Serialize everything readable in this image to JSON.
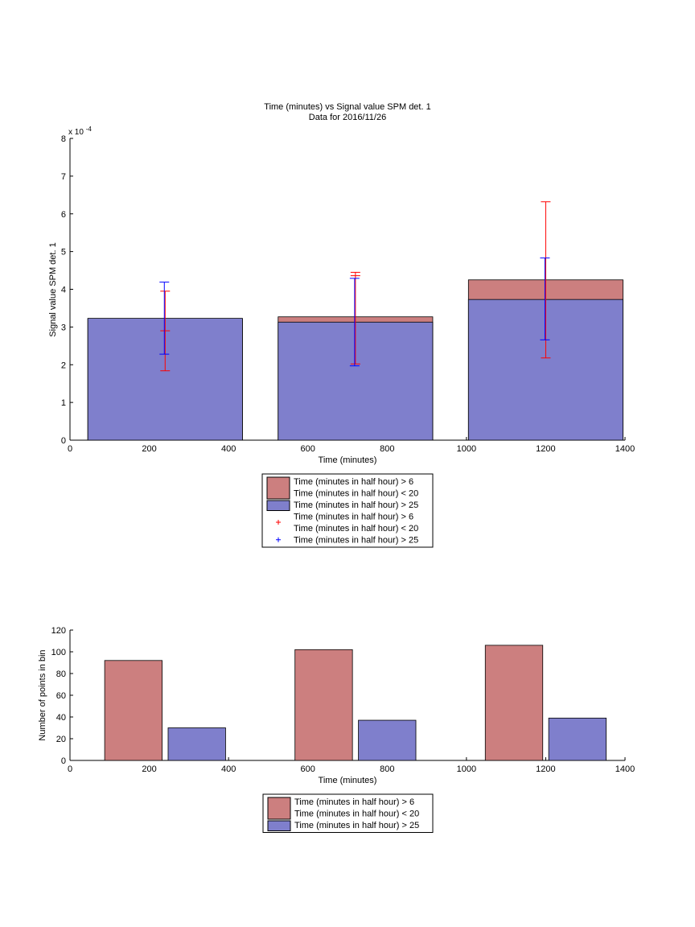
{
  "chart_data": [
    {
      "type": "bar",
      "title": "Time (minutes) vs Signal value SPM det. 1",
      "subtitle": "Data for 2016/11/26",
      "xlabel": "Time (minutes)",
      "ylabel": "Signal value SPM det. 1",
      "exponent_label": "x 10",
      "exponent_power": "-4",
      "xlim": [
        0,
        1400
      ],
      "ylim": [
        0,
        8
      ],
      "xticks": [
        "0",
        "200",
        "400",
        "600",
        "800",
        "1000",
        "1200",
        "1400"
      ],
      "yticks": [
        "0",
        "1",
        "2",
        "3",
        "4",
        "5",
        "6",
        "7",
        "8"
      ],
      "grid": false,
      "legend_position": "below",
      "bar_width": 390,
      "x": [
        240,
        720,
        1200
      ],
      "series": [
        {
          "name": "Time (minutes in half hour) > 6\nTime (minutes in half hour) < 20",
          "color": "#cc7f7f",
          "values": [
            3.22,
            3.27,
            4.25
          ],
          "error_low": [
            1.84,
            2.02,
            2.18
          ],
          "error_high": [
            3.95,
            4.45,
            6.32
          ],
          "error_ticks": [
            2.9,
            4.36,
            null
          ]
        },
        {
          "name": "Time (minutes in half hour) > 25",
          "color": "#7f7fcc",
          "values": [
            3.23,
            3.13,
            3.73
          ],
          "error_low": [
            2.28,
            1.97,
            2.66
          ],
          "error_high": [
            4.19,
            4.29,
            4.83
          ],
          "error_ticks": [
            null,
            null,
            null
          ]
        }
      ],
      "legend": {
        "entries": [
          {
            "kind": "patch",
            "color": "#cc7f7f",
            "lines": [
              "Time (minutes in half hour) > 6",
              "Time (minutes in half hour) < 20"
            ]
          },
          {
            "kind": "patch",
            "color": "#7f7fcc",
            "lines": [
              "Time (minutes in half hour) > 25"
            ]
          },
          {
            "kind": "marker",
            "color": "#ff0000",
            "lines": [
              "Time (minutes in half hour) > 6",
              "Time (minutes in half hour) < 20"
            ]
          },
          {
            "kind": "marker",
            "color": "#0000ff",
            "lines": [
              "Time (minutes in half hour) > 25"
            ]
          }
        ]
      }
    },
    {
      "type": "bar",
      "xlabel": "Time (minutes)",
      "ylabel": "Number of points in bin",
      "xlim": [
        0,
        1400
      ],
      "ylim": [
        0,
        120
      ],
      "xticks": [
        "0",
        "200",
        "400",
        "600",
        "800",
        "1000",
        "1200",
        "1400"
      ],
      "yticks": [
        "0",
        "20",
        "40",
        "60",
        "80",
        "100",
        "120"
      ],
      "grid": false,
      "legend_position": "below",
      "bars": [
        {
          "x": 160,
          "width": 145,
          "value": 92,
          "color": "#cc7f7f"
        },
        {
          "x": 320,
          "width": 145,
          "value": 30,
          "color": "#7f7fcc"
        },
        {
          "x": 640,
          "width": 145,
          "value": 102,
          "color": "#cc7f7f"
        },
        {
          "x": 800,
          "width": 145,
          "value": 37,
          "color": "#7f7fcc"
        },
        {
          "x": 1120,
          "width": 145,
          "value": 106,
          "color": "#cc7f7f"
        },
        {
          "x": 1280,
          "width": 145,
          "value": 39,
          "color": "#7f7fcc"
        }
      ],
      "legend": {
        "entries": [
          {
            "kind": "patch",
            "color": "#cc7f7f",
            "lines": [
              "Time (minutes in half hour) > 6",
              "Time (minutes in half hour) < 20"
            ]
          },
          {
            "kind": "patch",
            "color": "#7f7fcc",
            "lines": [
              "Time (minutes in half hour) > 25"
            ]
          }
        ]
      }
    }
  ]
}
